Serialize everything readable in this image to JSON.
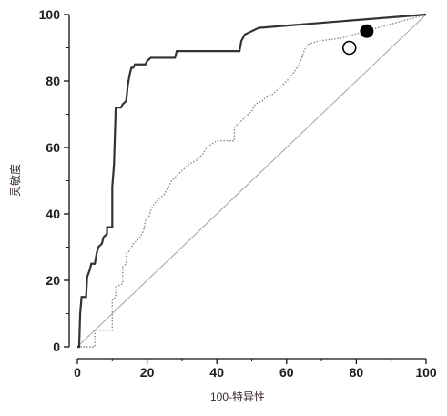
{
  "chart_data": {
    "type": "line",
    "xlabel": "100-特异性",
    "ylabel": "灵敏度",
    "xlim": [
      0,
      100
    ],
    "ylim": [
      0,
      100
    ],
    "xticks": [
      0,
      20,
      40,
      60,
      80,
      100
    ],
    "yticks": [
      0,
      20,
      40,
      60,
      80,
      100
    ],
    "grid": false,
    "colors": {
      "solid": "#333333",
      "dotted": "#888888",
      "reference": "#aaaaaa",
      "axis": "#111111"
    },
    "series": [
      {
        "style": "solid",
        "points": [
          [
            0,
            0
          ],
          [
            0.5,
            0
          ],
          [
            0.8,
            10
          ],
          [
            1.2,
            15
          ],
          [
            2.5,
            15
          ],
          [
            2.8,
            21
          ],
          [
            3.5,
            23
          ],
          [
            4,
            25
          ],
          [
            5,
            25
          ],
          [
            5.5,
            28
          ],
          [
            6,
            30
          ],
          [
            7,
            31
          ],
          [
            7.5,
            33
          ],
          [
            8.5,
            34
          ],
          [
            8.5,
            36
          ],
          [
            10,
            36
          ],
          [
            10,
            48
          ],
          [
            10.5,
            55
          ],
          [
            11,
            72
          ],
          [
            12.5,
            72
          ],
          [
            13,
            73
          ],
          [
            14,
            74
          ],
          [
            14.5,
            79
          ],
          [
            15,
            82
          ],
          [
            15.5,
            84
          ],
          [
            16,
            84
          ],
          [
            16.5,
            85
          ],
          [
            19.5,
            85
          ],
          [
            20,
            86
          ],
          [
            21,
            87
          ],
          [
            28,
            87
          ],
          [
            28.5,
            89
          ],
          [
            46.5,
            89
          ],
          [
            47,
            92
          ],
          [
            48,
            94
          ],
          [
            52,
            96
          ],
          [
            100,
            100
          ]
        ]
      },
      {
        "style": "dotted",
        "points": [
          [
            0,
            0
          ],
          [
            5,
            0
          ],
          [
            5,
            5
          ],
          [
            10,
            5
          ],
          [
            10,
            14
          ],
          [
            11,
            15
          ],
          [
            11,
            18
          ],
          [
            13,
            19
          ],
          [
            13,
            24
          ],
          [
            14,
            25
          ],
          [
            14,
            28
          ],
          [
            15,
            29
          ],
          [
            16,
            31
          ],
          [
            17,
            32
          ],
          [
            18,
            33
          ],
          [
            19,
            35
          ],
          [
            19.5,
            38
          ],
          [
            20.5,
            39
          ],
          [
            21,
            41
          ],
          [
            22,
            43
          ],
          [
            23,
            44
          ],
          [
            24,
            45
          ],
          [
            25,
            46
          ],
          [
            26,
            48
          ],
          [
            27,
            50
          ],
          [
            28,
            51
          ],
          [
            29,
            52
          ],
          [
            30,
            53
          ],
          [
            31,
            54
          ],
          [
            32,
            55
          ],
          [
            34,
            56
          ],
          [
            36,
            58
          ],
          [
            37,
            60
          ],
          [
            40,
            62
          ],
          [
            45,
            62
          ],
          [
            45,
            66
          ],
          [
            47,
            68
          ],
          [
            50,
            71
          ],
          [
            51,
            73
          ],
          [
            53,
            74
          ],
          [
            54,
            75
          ],
          [
            56,
            76
          ],
          [
            57,
            77
          ],
          [
            58,
            78
          ],
          [
            60,
            80
          ],
          [
            61,
            81
          ],
          [
            63,
            84
          ],
          [
            64,
            86
          ],
          [
            65,
            89
          ],
          [
            66,
            91
          ],
          [
            69,
            92
          ],
          [
            76,
            93
          ],
          [
            86,
            96
          ],
          [
            100,
            100
          ]
        ]
      },
      {
        "style": "reference",
        "points": [
          [
            0,
            0
          ],
          [
            100,
            100
          ]
        ]
      }
    ],
    "markers": [
      {
        "fill": "filled",
        "x": 83,
        "y": 95
      },
      {
        "fill": "open",
        "x": 78,
        "y": 90
      }
    ]
  }
}
